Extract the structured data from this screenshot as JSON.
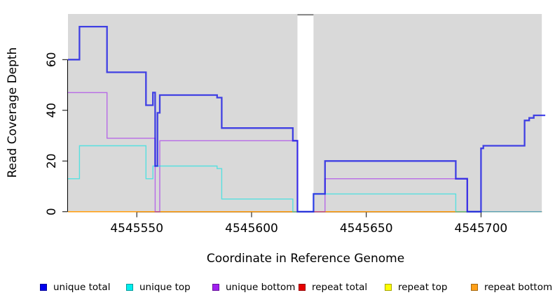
{
  "chart_data": {
    "type": "line",
    "subtype": "step",
    "title": "",
    "xlabel": "Coordinate in Reference Genome",
    "ylabel": "Read Coverage Depth",
    "xlim": [
      4545520,
      4545726.5
    ],
    "ylim": [
      0,
      78
    ],
    "x_ticks": [
      4545550,
      4545600,
      4545650,
      4545700
    ],
    "y_ticks": [
      0,
      20,
      40,
      60
    ],
    "grid": false,
    "plot_background": "#D9D9D9",
    "gap_region": {
      "x_start": 4545620,
      "x_end": 4545627
    },
    "legend_position": "bottom",
    "series": [
      {
        "name": "repeat total",
        "color": "#E60000",
        "opacity": 1,
        "width": 1.4,
        "draw_order": 1,
        "steps": [
          [
            4545520,
            0
          ]
        ],
        "x_end": 4545726.5
      },
      {
        "name": "repeat top",
        "color": "#FFFF00",
        "opacity": 1,
        "width": 1.4,
        "draw_order": 2,
        "steps": [
          [
            4545520,
            0
          ]
        ],
        "x_end": 4545726.5
      },
      {
        "name": "repeat bottom",
        "color": "#FFA019",
        "opacity": 1,
        "width": 1.7,
        "draw_order": 3,
        "steps": [
          [
            4545520,
            0
          ]
        ],
        "x_end": 4545726.5
      },
      {
        "name": "unique bottom",
        "color": "#A020F0",
        "opacity": 0.6,
        "width": 1.4,
        "draw_order": 4,
        "steps": [
          [
            4545520,
            47
          ],
          [
            4545537,
            29
          ],
          [
            4545558,
            0
          ],
          [
            4545560,
            28
          ],
          [
            4545620,
            0
          ],
          [
            4545632,
            13
          ],
          [
            4545694,
            0
          ]
        ],
        "x_end": 4545726.5
      },
      {
        "name": "unique top",
        "color": "#00E5E5",
        "opacity": 0.6,
        "width": 1.4,
        "draw_order": 5,
        "steps": [
          [
            4545520,
            13
          ],
          [
            4545525,
            26
          ],
          [
            4545554,
            13
          ],
          [
            4545557,
            18
          ],
          [
            4545585,
            17
          ],
          [
            4545587,
            5
          ],
          [
            4545618,
            0
          ],
          [
            4545627,
            7
          ],
          [
            4545689,
            0
          ]
        ],
        "x_end": 4545726.5
      },
      {
        "name": "unique total",
        "color": "#1414E6",
        "opacity": 0.78,
        "width": 2.3,
        "draw_order": 6,
        "steps": [
          [
            4545520,
            60
          ],
          [
            4545525,
            73
          ],
          [
            4545537,
            55
          ],
          [
            4545554,
            42
          ],
          [
            4545557,
            47
          ],
          [
            4545558,
            18
          ],
          [
            4545559,
            39
          ],
          [
            4545560,
            46
          ],
          [
            4545585,
            45
          ],
          [
            4545587,
            33
          ],
          [
            4545618,
            28
          ],
          [
            4545620,
            0
          ],
          [
            4545627,
            7
          ],
          [
            4545632,
            20
          ],
          [
            4545689,
            13
          ],
          [
            4545694,
            0
          ],
          [
            4545700,
            25
          ],
          [
            4545701,
            26
          ],
          [
            4545719,
            36
          ],
          [
            4545721,
            37
          ],
          [
            4545723,
            38
          ]
        ],
        "x_end": 4545728
      }
    ]
  },
  "axis": {
    "x_title": "Coordinate in Reference Genome",
    "y_title": "Read Coverage Depth"
  },
  "legend": {
    "items": [
      {
        "label": "unique total",
        "color": "#0000EE"
      },
      {
        "label": "unique top",
        "color": "#00EEEE"
      },
      {
        "label": "unique bottom",
        "color": "#A020F0"
      },
      {
        "label": "repeat total",
        "color": "#E60000"
      },
      {
        "label": "repeat top",
        "color": "#FFFF00"
      },
      {
        "label": "repeat bottom",
        "color": "#FFA019"
      }
    ]
  }
}
